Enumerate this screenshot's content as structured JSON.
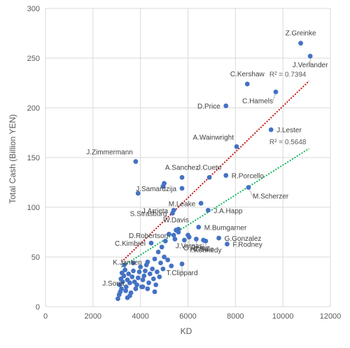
{
  "chart_data": {
    "type": "scatter",
    "xlabel": "KD",
    "ylabel": "Total Cash (Billion YEN)",
    "xlim": [
      0,
      12000
    ],
    "ylim": [
      0,
      300
    ],
    "x_ticks": [
      0,
      2000,
      4000,
      6000,
      8000,
      10000,
      12000
    ],
    "y_ticks": [
      0,
      50,
      100,
      150,
      200,
      250,
      300
    ],
    "grid": "vertical and horizontal",
    "marker_color": "#4472c4",
    "trendlines": [
      {
        "color": "#c00000",
        "style": "dotted",
        "x": [
          3200,
          11100
        ],
        "y": [
          45,
          227
        ],
        "r2_text": "R² = 0.7394"
      },
      {
        "color": "#00b050",
        "style": "dotted",
        "x": [
          3200,
          11100
        ],
        "y": [
          40,
          159
        ],
        "r2_text": "R² = 0.5648"
      }
    ],
    "labeled_points": [
      {
        "name": "Z.Greinke",
        "x": 10750,
        "y": 265,
        "label_pos": "above"
      },
      {
        "name": "J.Verlander",
        "x": 11150,
        "y": 252,
        "label_pos": "below"
      },
      {
        "name": "C.Kershaw",
        "x": 8500,
        "y": 224,
        "label_pos": "above"
      },
      {
        "name": "C.Hamels",
        "x": 9700,
        "y": 216,
        "label_pos": "below-left"
      },
      {
        "name": "D.Price",
        "x": 7600,
        "y": 202,
        "label_pos": "left"
      },
      {
        "name": "J.Lester",
        "x": 9500,
        "y": 178,
        "label_pos": "right"
      },
      {
        "name": "A.Wainwright",
        "x": 8050,
        "y": 161,
        "label_pos": "above-left"
      },
      {
        "name": "J.Zimmermann",
        "x": 3800,
        "y": 146,
        "label_pos": "above-left"
      },
      {
        "name": "A.Sanchez",
        "x": 5750,
        "y": 130,
        "label_pos": "above"
      },
      {
        "name": "J.Cueto",
        "x": 6900,
        "y": 130,
        "label_pos": "above"
      },
      {
        "name": "J.Samardzija",
        "x": 5750,
        "y": 119,
        "label_pos": "left"
      },
      {
        "name": "R.Porcello",
        "x": 7600,
        "y": 132,
        "label_pos": "right"
      },
      {
        "name": "M.Scherzer",
        "x": 8550,
        "y": 120,
        "label_pos": "below-right"
      },
      {
        "name": "J.Arrieta",
        "x": 5400,
        "y": 97,
        "label_pos": "left"
      },
      {
        "name": "M.Leake",
        "x": 6550,
        "y": 104,
        "label_pos": "left"
      },
      {
        "name": "S.Strasburg",
        "x": 5350,
        "y": 94,
        "label_pos": "left"
      },
      {
        "name": "J.A.Happ",
        "x": 6850,
        "y": 97,
        "label_pos": "right"
      },
      {
        "name": "W.Davis",
        "x": 5500,
        "y": 77,
        "label_pos": "above"
      },
      {
        "name": "M.Bumgarner",
        "x": 6450,
        "y": 80,
        "label_pos": "right"
      },
      {
        "name": "D.Robertson",
        "x": 5400,
        "y": 72,
        "label_pos": "left"
      },
      {
        "name": "G.Gonzalez",
        "x": 7300,
        "y": 69,
        "label_pos": "right"
      },
      {
        "name": "C.Kimbrel",
        "x": 4450,
        "y": 64,
        "label_pos": "left"
      },
      {
        "name": "F.Rodney",
        "x": 7650,
        "y": 63,
        "label_pos": "right"
      },
      {
        "name": "I.Kennedy",
        "x": 6750,
        "y": 66,
        "label_pos": "below"
      },
      {
        "name": "C.Sale",
        "x": 6650,
        "y": 67,
        "label_pos": "below"
      },
      {
        "name": "K.Jansen",
        "x": 4300,
        "y": 45,
        "label_pos": "left"
      },
      {
        "name": "O.Perez",
        "x": 6350,
        "y": 68,
        "label_pos": "below"
      },
      {
        "name": "J.Soria",
        "x": 3550,
        "y": 24,
        "label_pos": "left"
      },
      {
        "name": "J.Vargas",
        "x": 6050,
        "y": 70,
        "label_pos": "below"
      },
      {
        "name": "T.Clippard",
        "x": 5750,
        "y": 43,
        "label_pos": "below"
      }
    ],
    "unlabeled_points": [
      {
        "x": 3050,
        "y": 8
      },
      {
        "x": 3100,
        "y": 12
      },
      {
        "x": 3150,
        "y": 15
      },
      {
        "x": 3200,
        "y": 18
      },
      {
        "x": 3120,
        "y": 22
      },
      {
        "x": 3250,
        "y": 25
      },
      {
        "x": 3180,
        "y": 28
      },
      {
        "x": 3300,
        "y": 31
      },
      {
        "x": 3220,
        "y": 34
      },
      {
        "x": 3350,
        "y": 37
      },
      {
        "x": 3400,
        "y": 20
      },
      {
        "x": 3450,
        "y": 27
      },
      {
        "x": 3500,
        "y": 33
      },
      {
        "x": 3380,
        "y": 16
      },
      {
        "x": 3600,
        "y": 14
      },
      {
        "x": 3650,
        "y": 30
      },
      {
        "x": 3700,
        "y": 36
      },
      {
        "x": 3750,
        "y": 25
      },
      {
        "x": 3800,
        "y": 18
      },
      {
        "x": 3850,
        "y": 22
      },
      {
        "x": 3900,
        "y": 29
      },
      {
        "x": 3950,
        "y": 35
      },
      {
        "x": 4000,
        "y": 40
      },
      {
        "x": 4050,
        "y": 20
      },
      {
        "x": 4100,
        "y": 27
      },
      {
        "x": 4150,
        "y": 31
      },
      {
        "x": 4200,
        "y": 36
      },
      {
        "x": 4250,
        "y": 42
      },
      {
        "x": 4300,
        "y": 18
      },
      {
        "x": 4350,
        "y": 24
      },
      {
        "x": 4400,
        "y": 33
      },
      {
        "x": 4500,
        "y": 38
      },
      {
        "x": 4550,
        "y": 28
      },
      {
        "x": 4600,
        "y": 48
      },
      {
        "x": 4650,
        "y": 22
      },
      {
        "x": 4700,
        "y": 35
      },
      {
        "x": 4750,
        "y": 55
      },
      {
        "x": 4800,
        "y": 30
      },
      {
        "x": 4850,
        "y": 44
      },
      {
        "x": 4900,
        "y": 60
      },
      {
        "x": 4950,
        "y": 38
      },
      {
        "x": 5000,
        "y": 50
      },
      {
        "x": 5050,
        "y": 66
      },
      {
        "x": 5150,
        "y": 47
      },
      {
        "x": 5200,
        "y": 73
      },
      {
        "x": 5300,
        "y": 41
      },
      {
        "x": 5450,
        "y": 68
      },
      {
        "x": 5600,
        "y": 75
      },
      {
        "x": 3550,
        "y": 11
      },
      {
        "x": 3320,
        "y": 42
      },
      {
        "x": 3700,
        "y": 44
      },
      {
        "x": 4100,
        "y": 20
      },
      {
        "x": 3900,
        "y": 114
      },
      {
        "x": 4950,
        "y": 121
      },
      {
        "x": 5000,
        "y": 124
      },
      {
        "x": 5600,
        "y": 78
      },
      {
        "x": 6000,
        "y": 72
      },
      {
        "x": 5850,
        "y": 67
      },
      {
        "x": 4600,
        "y": 15
      },
      {
        "x": 3450,
        "y": 9
      }
    ]
  }
}
